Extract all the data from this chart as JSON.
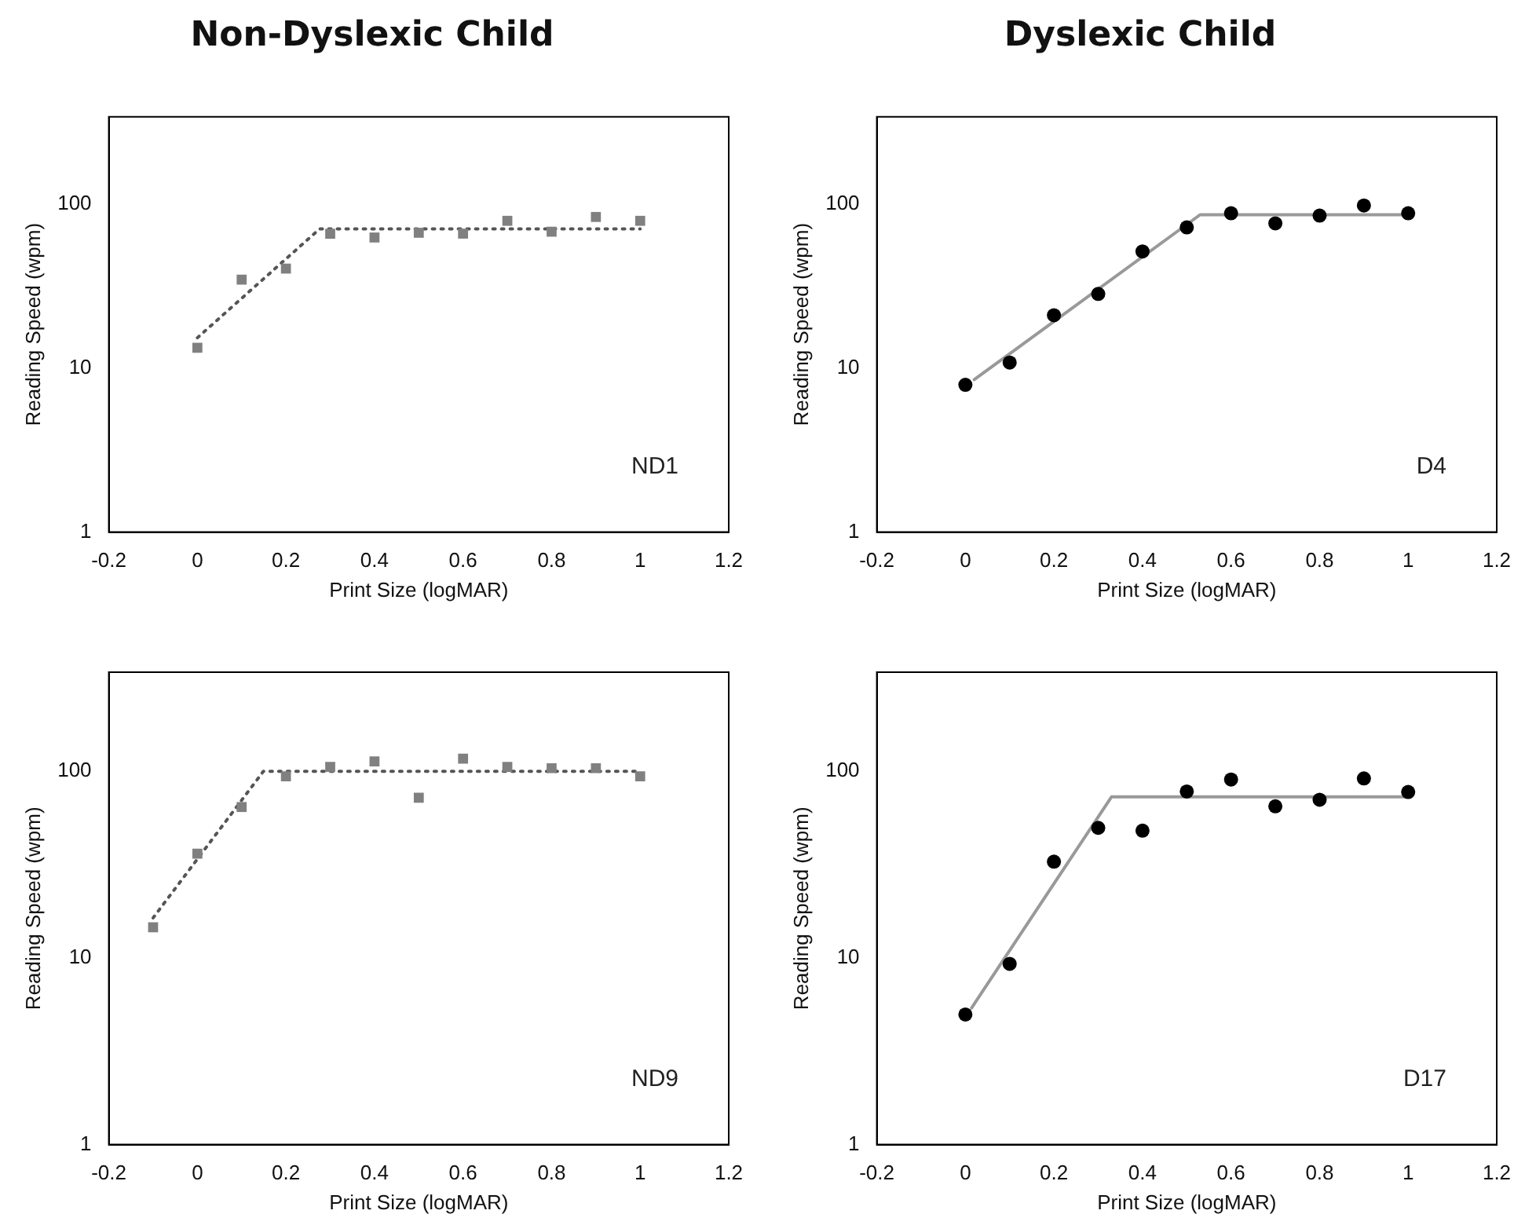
{
  "chart_data": [
    {
      "type": "scatter",
      "title": "Non-Dyslexic Child",
      "xlabel": "Print Size (logMAR)",
      "ylabel": "Reading Speed (wpm)",
      "annotations": [
        "ND1"
      ],
      "log": "y",
      "grid": false,
      "legend": false,
      "xlim": [
        -0.2,
        1.2
      ],
      "xticks": [
        -0.2,
        0,
        0.2,
        0.4,
        0.6,
        0.8,
        1,
        1.2
      ],
      "ylim": [
        1,
        340
      ],
      "yticks": [
        1,
        10,
        100
      ],
      "x": [
        0,
        0.1,
        0.2,
        0.3,
        0.4,
        0.5,
        0.6,
        0.7,
        0.8,
        0.9,
        1
      ],
      "series": [
        {
          "marker": "square",
          "color": "#808080",
          "values": [
            13.3,
            34.6,
            40.4,
            65.9,
            62.5,
            66.8,
            66,
            79,
            67.8,
            83.4,
            79
          ]
        },
        {
          "type": "line",
          "marker": "none",
          "line_style": "dotted",
          "color": "#555555",
          "x": [
            0,
            0.276,
            1
          ],
          "values": [
            15.3,
            70.5,
            70.5
          ]
        }
      ]
    },
    {
      "type": "scatter",
      "title": "Dyslexic Child",
      "xlabel": "Print Size (logMAR)",
      "ylabel": "Reading Speed (wpm)",
      "annotations": [
        "D4"
      ],
      "log": "y",
      "grid": false,
      "legend": false,
      "xlim": [
        -0.2,
        1.2
      ],
      "xticks": [
        -0.2,
        0,
        0.2,
        0.4,
        0.6,
        0.8,
        1,
        1.2
      ],
      "ylim": [
        1,
        340
      ],
      "yticks": [
        1,
        10,
        100
      ],
      "x": [
        0,
        0.1,
        0.2,
        0.3,
        0.4,
        0.5,
        0.6,
        0.7,
        0.8,
        0.9,
        1
      ],
      "series": [
        {
          "marker": "circle",
          "color": "#000000",
          "values": [
            7.9,
            10.8,
            21,
            28.3,
            51.4,
            72,
            87.9,
            76.2,
            85,
            98,
            87.9
          ]
        },
        {
          "type": "line",
          "marker": "none",
          "line_style": "solid",
          "color": "#999999",
          "x": [
            0.02,
            0.53,
            1
          ],
          "values": [
            8.5,
            86,
            86
          ]
        }
      ]
    },
    {
      "type": "scatter",
      "xlabel": "Print Size (logMAR)",
      "ylabel": "Reading Speed (wpm)",
      "annotations": [
        "ND9"
      ],
      "log": "y",
      "grid": false,
      "legend": false,
      "xlim": [
        -0.2,
        1.2
      ],
      "xticks": [
        -0.2,
        0,
        0.2,
        0.4,
        0.6,
        0.8,
        1,
        1.2
      ],
      "ylim": [
        1,
        340
      ],
      "yticks": [
        1,
        10,
        100
      ],
      "x": [
        -0.1,
        0,
        0.1,
        0.2,
        0.3,
        0.4,
        0.5,
        0.6,
        0.7,
        0.8,
        0.9,
        1
      ],
      "series": [
        {
          "marker": "square",
          "color": "#808080",
          "values": [
            14.6,
            36.2,
            64.4,
            94,
            105.6,
            113,
            72.2,
            117,
            105.6,
            104,
            104,
            94
          ]
        },
        {
          "type": "line",
          "marker": "none",
          "line_style": "dotted",
          "color": "#555555",
          "x": [
            -0.1,
            0.149,
            1
          ],
          "values": [
            16.4,
            100,
            100
          ]
        }
      ]
    },
    {
      "type": "scatter",
      "xlabel": "Print Size (logMAR)",
      "ylabel": "Reading Speed (wpm)",
      "annotations": [
        "D17"
      ],
      "log": "y",
      "grid": false,
      "legend": false,
      "xlim": [
        -0.2,
        1.2
      ],
      "xticks": [
        -0.2,
        0,
        0.2,
        0.4,
        0.6,
        0.8,
        1,
        1.2
      ],
      "ylim": [
        1,
        340
      ],
      "yticks": [
        1,
        10,
        100
      ],
      "x": [
        0,
        0.1,
        0.2,
        0.3,
        0.4,
        0.5,
        0.6,
        0.7,
        0.8,
        0.9,
        1
      ],
      "series": [
        {
          "marker": "circle",
          "color": "#000000",
          "values": [
            4.98,
            9.3,
            32.8,
            49.8,
            48.1,
            78,
            90.4,
            65,
            70.5,
            91.6,
            77.5
          ]
        },
        {
          "type": "line",
          "marker": "none",
          "line_style": "solid",
          "color": "#999999",
          "x": [
            0.014,
            0.33,
            1
          ],
          "values": [
            5.4,
            73,
            73
          ]
        }
      ]
    }
  ]
}
